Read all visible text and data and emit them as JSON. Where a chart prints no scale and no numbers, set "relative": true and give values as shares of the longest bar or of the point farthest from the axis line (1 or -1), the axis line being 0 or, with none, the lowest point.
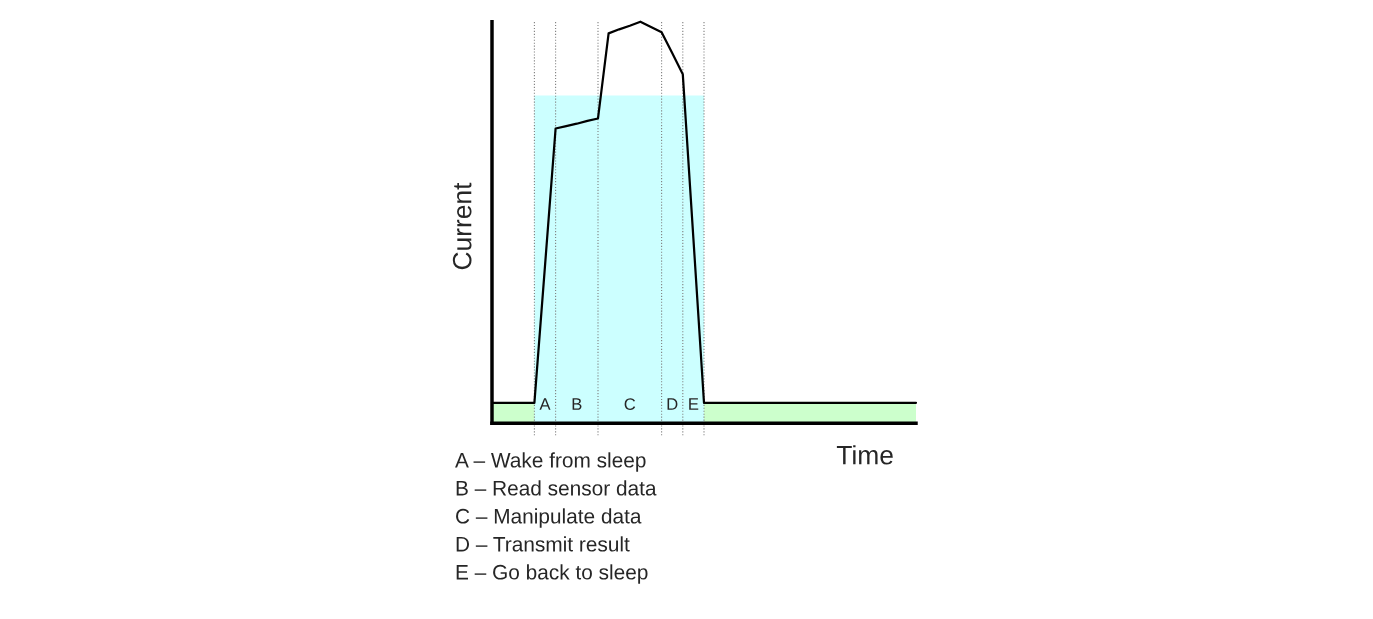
{
  "chart_data": {
    "type": "line",
    "relative": true,
    "xlabel": "Time",
    "ylabel": "Current",
    "categories": [
      null,
      null,
      null,
      null,
      null,
      null,
      null,
      null,
      null,
      null,
      null,
      null,
      null,
      null,
      null,
      null,
      null,
      null,
      null,
      null,
      null,
      null,
      null,
      null,
      null,
      null,
      null,
      null,
      null,
      null,
      null,
      null,
      null,
      null,
      null,
      null,
      null,
      null,
      null,
      null,
      null
    ],
    "series": [
      {
        "type": "area",
        "color": "#ccffff",
        "values": [
          null,
          null,
          null,
          null,
          0.816,
          0.816,
          0.816,
          0.816,
          0.816,
          0.816,
          0.816,
          0.816,
          0.816,
          0.816,
          0.816,
          0.816,
          0.816,
          0.816,
          0.816,
          0.816,
          0.816,
          null,
          null,
          null,
          null,
          null,
          null,
          null,
          null,
          null,
          null,
          null,
          null,
          null,
          null,
          null,
          null,
          null,
          null,
          null,
          null
        ]
      },
      {
        "color": "#000000",
        "values": [
          0.051,
          0.051,
          0.051,
          0.051,
          0.051,
          0.392,
          0.734,
          0.74,
          0.746,
          0.753,
          0.759,
          0.971,
          0.981,
          0.99,
          1,
          0.987,
          0.974,
          0.922,
          0.869,
          0.46,
          0.051,
          0.051,
          0.051,
          0.051,
          0.051,
          0.051,
          0.051,
          0.051,
          0.051,
          0.051,
          0.051,
          0.051,
          0.051,
          0.051,
          0.051,
          0.051,
          0.051,
          0.051,
          0.051,
          0.051,
          0.051
        ]
      }
    ],
    "bands": [
      {
        "axis": "y",
        "from": 0,
        "to": 0.051,
        "color": "#ccffcc"
      }
    ],
    "grid": "x",
    "annotations": [
      "A",
      "B",
      "C",
      "D",
      "E",
      "A – Wake from sleep",
      "B – Read sensor data",
      "C – Manipulate data",
      "D – Transmit result",
      "E – Go back to sleep"
    ]
  }
}
